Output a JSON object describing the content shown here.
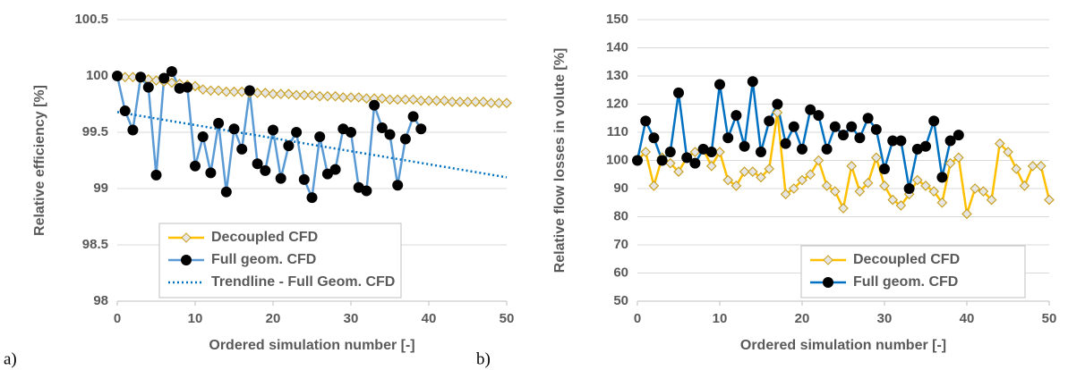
{
  "chart_data": [
    {
      "type": "line",
      "panel_label": "a)",
      "x_label": "Ordered simulation number [-]",
      "y_label": "Relative efficiency [%]",
      "xlim": [
        0,
        50
      ],
      "xticks": [
        0,
        10,
        20,
        30,
        40,
        50
      ],
      "ylim": [
        98,
        100.5
      ],
      "yticks": [
        98,
        98.5,
        99,
        99.5,
        100,
        100.5
      ],
      "grid": true,
      "legend": "lower left",
      "series": [
        {
          "name": "Decoupled CFD",
          "color": "#FFC000",
          "marker": "diamond",
          "x": [
            0,
            1,
            2,
            3,
            4,
            5,
            6,
            7,
            8,
            9,
            10,
            11,
            12,
            13,
            14,
            15,
            16,
            17,
            18,
            19,
            20,
            21,
            22,
            23,
            24,
            25,
            26,
            27,
            28,
            29,
            30,
            31,
            32,
            33,
            34,
            35,
            36,
            37,
            38,
            39,
            40,
            41,
            42,
            43,
            44,
            45,
            46,
            47,
            48,
            49,
            50
          ],
          "values": [
            100,
            99.99,
            99.99,
            99.98,
            99.97,
            99.96,
            99.95,
            99.94,
            99.93,
            99.92,
            99.91,
            99.88,
            99.87,
            99.87,
            99.86,
            99.86,
            99.86,
            99.85,
            99.85,
            99.85,
            99.84,
            99.84,
            99.84,
            99.83,
            99.83,
            99.83,
            99.82,
            99.82,
            99.82,
            99.81,
            99.81,
            99.81,
            99.8,
            99.8,
            99.8,
            99.79,
            99.79,
            99.79,
            99.79,
            99.78,
            99.78,
            99.78,
            99.78,
            99.77,
            99.77,
            99.77,
            99.77,
            99.77,
            99.76,
            99.76,
            99.76
          ]
        },
        {
          "name": "Full geom. CFD",
          "color": "#5B9BD5",
          "marker": "circle",
          "x": [
            0,
            1,
            2,
            3,
            4,
            5,
            6,
            7,
            8,
            9,
            10,
            11,
            12,
            13,
            14,
            15,
            16,
            17,
            18,
            19,
            20,
            21,
            22,
            23,
            24,
            25,
            26,
            27,
            28,
            29,
            30,
            31,
            32,
            33,
            34,
            35,
            36,
            37,
            38,
            39
          ],
          "values": [
            100,
            99.69,
            99.52,
            99.99,
            99.9,
            99.12,
            99.98,
            100.04,
            99.89,
            99.9,
            99.2,
            99.46,
            99.14,
            99.58,
            98.97,
            99.53,
            99.35,
            99.87,
            99.22,
            99.16,
            99.52,
            99.09,
            99.38,
            99.5,
            99.08,
            98.92,
            99.46,
            99.13,
            99.17,
            99.53,
            99.5,
            99.01,
            98.98,
            99.74,
            99.54,
            99.48,
            99.03,
            99.44,
            99.64,
            99.53
          ]
        },
        {
          "name": "Trendline - Full Geom. CFD",
          "color": "#0070C0",
          "dash": "dotted",
          "x": [
            0,
            50
          ],
          "values": [
            99.68,
            99.1
          ]
        }
      ]
    },
    {
      "type": "line",
      "panel_label": "b)",
      "x_label": "Ordered simulation number [-]",
      "y_label": "Relative flow losses in volute [%]",
      "xlim": [
        0,
        50
      ],
      "xticks": [
        0,
        10,
        20,
        30,
        40,
        50
      ],
      "ylim": [
        50,
        150
      ],
      "yticks": [
        50,
        60,
        70,
        80,
        90,
        100,
        110,
        120,
        130,
        140,
        150
      ],
      "grid": true,
      "legend": "lower right",
      "series": [
        {
          "name": "Decoupled CFD",
          "color": "#FFC000",
          "marker": "diamond",
          "x": [
            0,
            1,
            2,
            3,
            4,
            5,
            6,
            7,
            8,
            9,
            10,
            11,
            12,
            13,
            14,
            15,
            16,
            17,
            18,
            19,
            20,
            21,
            22,
            23,
            24,
            25,
            26,
            27,
            28,
            29,
            30,
            31,
            32,
            33,
            34,
            35,
            36,
            37,
            38,
            39,
            40,
            41,
            42,
            43,
            44,
            45,
            46,
            47,
            48,
            49,
            50
          ],
          "values": [
            100,
            103,
            91,
            101,
            99,
            96,
            101,
            103,
            104,
            98,
            103,
            93,
            91,
            96,
            96,
            94,
            97,
            117,
            88,
            90,
            93,
            95,
            100,
            91,
            89,
            83,
            98,
            89,
            92,
            101,
            91,
            86,
            84,
            88,
            93,
            91,
            89,
            85,
            99,
            101,
            81,
            90,
            89,
            86,
            106,
            103,
            97,
            91,
            98,
            98,
            86
          ]
        },
        {
          "name": "Full geom. CFD",
          "color": "#0070C0",
          "marker": "circle",
          "x": [
            0,
            1,
            2,
            3,
            4,
            5,
            6,
            7,
            8,
            9,
            10,
            11,
            12,
            13,
            14,
            15,
            16,
            17,
            18,
            19,
            20,
            21,
            22,
            23,
            24,
            25,
            26,
            27,
            28,
            29,
            30,
            31,
            32,
            33,
            34,
            35,
            36,
            37,
            38,
            39
          ],
          "values": [
            100,
            114,
            108,
            100,
            103,
            124,
            101,
            99,
            104,
            103,
            127,
            108,
            116,
            105,
            128,
            103,
            114,
            120,
            106,
            112,
            104,
            118,
            116,
            104,
            112,
            109,
            112,
            108,
            115,
            111,
            97,
            107,
            107,
            90,
            104,
            105,
            114,
            94,
            107,
            109
          ]
        }
      ]
    }
  ]
}
